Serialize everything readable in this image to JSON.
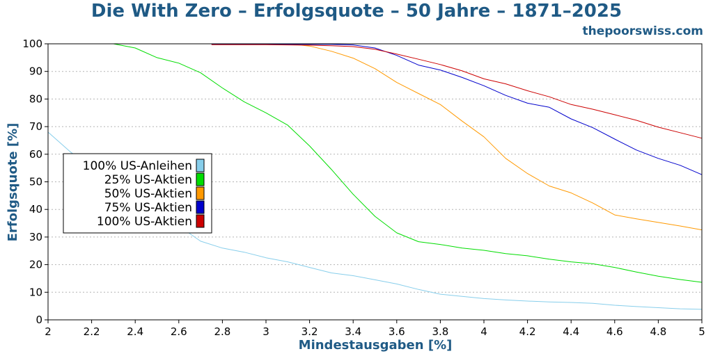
{
  "title": "Die With Zero – Erfolgsquote – 50 Jahre – 1871–2025",
  "watermark": "thepoorswiss.com",
  "colors": {
    "title": "#1f5a85"
  },
  "chart_data": {
    "type": "line",
    "title": "Die With Zero – Erfolgsquote – 50 Jahre – 1871–2025",
    "xlabel": "Mindestausgaben [%]",
    "ylabel": "Erfolgsquote [%]",
    "xlim": [
      2,
      5
    ],
    "ylim": [
      0,
      100
    ],
    "xticks": [
      "2",
      "2.2",
      "2.4",
      "2.6",
      "2.8",
      "3",
      "3.2",
      "3.4",
      "3.6",
      "3.8",
      "4",
      "4.2",
      "4.4",
      "4.6",
      "4.8",
      "5"
    ],
    "yticks": [
      "0",
      "10",
      "20",
      "30",
      "40",
      "50",
      "60",
      "70",
      "80",
      "90",
      "100"
    ],
    "grid": true,
    "legend_position": "left-center",
    "series": [
      {
        "name": "100% US-Anleihen",
        "color": "#87ceeb",
        "x": [
          2,
          2.1,
          2.2,
          2.3,
          2.4,
          2.5,
          2.6,
          2.7,
          2.8,
          2.9,
          3,
          3.1,
          3.2,
          3.3,
          3.4,
          3.5,
          3.6,
          3.7,
          3.8,
          3.9,
          4,
          4.1,
          4.2,
          4.3,
          4.4,
          4.5,
          4.6,
          4.7,
          4.8,
          4.9,
          5
        ],
        "values": [
          68,
          61,
          55,
          49,
          44,
          39,
          34,
          28.5,
          26,
          24.5,
          22.5,
          21,
          19,
          17,
          16,
          14.5,
          13,
          11,
          9.3,
          8.5,
          7.7,
          7.2,
          6.8,
          6.5,
          6.3,
          6,
          5.3,
          4.8,
          4.4,
          4,
          3.8
        ]
      },
      {
        "name": "25% US-Aktien",
        "color": "#00dd00",
        "x": [
          2,
          2.1,
          2.2,
          2.3,
          2.4,
          2.5,
          2.6,
          2.7,
          2.8,
          2.9,
          3,
          3.1,
          3.2,
          3.3,
          3.4,
          3.5,
          3.6,
          3.7,
          3.8,
          3.9,
          4,
          4.1,
          4.2,
          4.3,
          4.4,
          4.5,
          4.6,
          4.7,
          4.8,
          4.9,
          5
        ],
        "values": [
          100,
          100,
          100,
          100,
          98.5,
          95,
          93,
          89.5,
          84,
          79,
          75,
          70.5,
          63,
          54.5,
          45.5,
          37.5,
          31.5,
          28.3,
          27.3,
          26,
          25.2,
          24,
          23.2,
          22,
          21,
          20.3,
          19,
          17.3,
          15.8,
          14.6,
          13.6
        ]
      },
      {
        "name": "50% US-Aktien",
        "color": "#ff9900",
        "x": [
          2,
          2.5,
          3,
          3.1,
          3.2,
          3.3,
          3.4,
          3.5,
          3.6,
          3.7,
          3.8,
          3.9,
          4,
          4.1,
          4.2,
          4.3,
          4.4,
          4.5,
          4.6,
          4.7,
          4.8,
          4.9,
          5
        ],
        "values": [
          100,
          100,
          100,
          100,
          99.2,
          97.3,
          94.8,
          91,
          86,
          82,
          78,
          72,
          66.3,
          58.5,
          53,
          48.5,
          46,
          42.3,
          38,
          36.6,
          35.3,
          34,
          32.6
        ]
      },
      {
        "name": "75% US-Aktien",
        "color": "#0000cc",
        "x": [
          2.75,
          3,
          3.2,
          3.3,
          3.4,
          3.5,
          3.6,
          3.7,
          3.8,
          3.9,
          4,
          4.1,
          4.2,
          4.3,
          4.4,
          4.5,
          4.6,
          4.7,
          4.8,
          4.9,
          5
        ],
        "values": [
          99.8,
          99.8,
          99.8,
          99.8,
          99.6,
          98.5,
          95.8,
          92.3,
          90.5,
          87.8,
          84.8,
          81.3,
          78.5,
          77,
          72.8,
          69.6,
          65.5,
          61.5,
          58.5,
          56,
          52.6
        ]
      },
      {
        "name": "100% US-Aktien",
        "color": "#cc0000",
        "x": [
          2.75,
          3,
          3.2,
          3.3,
          3.4,
          3.5,
          3.6,
          3.7,
          3.8,
          3.9,
          4,
          4.1,
          4.2,
          4.3,
          4.4,
          4.5,
          4.6,
          4.7,
          4.8,
          4.9,
          5
        ],
        "values": [
          99.7,
          99.7,
          99.5,
          99.3,
          99,
          98,
          96.3,
          94.4,
          92.5,
          90.2,
          87.3,
          85.5,
          83,
          80.8,
          78,
          76.3,
          74.3,
          72.3,
          69.8,
          67.8,
          65.8
        ]
      }
    ]
  }
}
